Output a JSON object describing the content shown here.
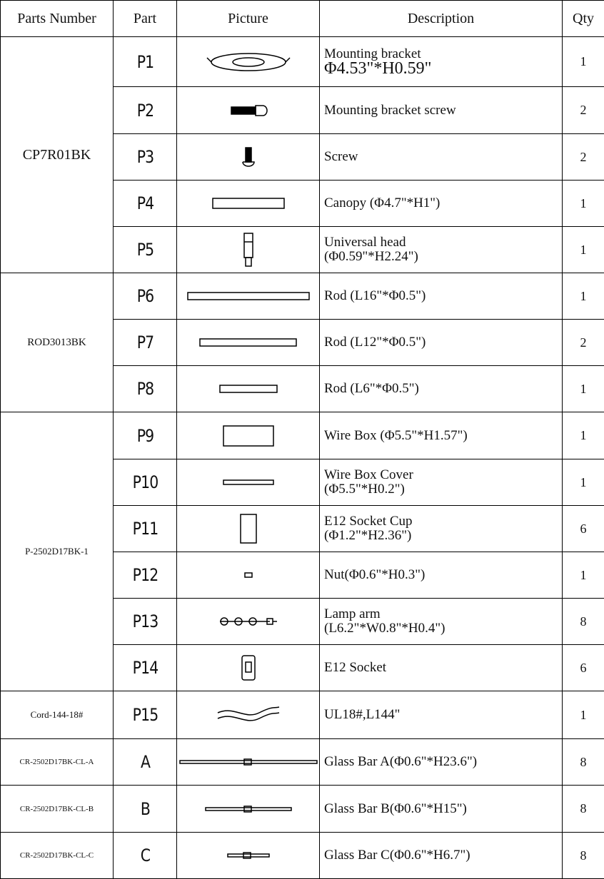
{
  "header": [
    "Parts Number",
    "Part",
    "Picture",
    "Description",
    "Qty"
  ],
  "groups": [
    {
      "parts_number": "CP7R01BK",
      "items": [
        {
          "part": "P1",
          "description": [
            "Mounting bracket",
            "Φ4.53\"*H0.59\""
          ],
          "qty": 1
        },
        {
          "part": "P2",
          "description": [
            "Mounting bracket screw"
          ],
          "qty": 2
        },
        {
          "part": "P3",
          "description": [
            "Screw"
          ],
          "qty": 2
        },
        {
          "part": "P4",
          "description": [
            "Canopy (Φ4.7\"*H1\")"
          ],
          "qty": 1
        },
        {
          "part": "P5",
          "description": [
            "Universal head",
            "(Φ0.59\"*H2.24\")"
          ],
          "qty": 1
        }
      ]
    },
    {
      "parts_number": "ROD3013BK",
      "items": [
        {
          "part": "P6",
          "description": [
            "Rod (L16\"*Φ0.5\")"
          ],
          "qty": 1
        },
        {
          "part": "P7",
          "description": [
            "Rod (L12\"*Φ0.5\")"
          ],
          "qty": 2
        },
        {
          "part": "P8",
          "description": [
            "Rod (L6\"*Φ0.5\")"
          ],
          "qty": 1
        }
      ]
    },
    {
      "parts_number": "P-2502D17BK-1",
      "items": [
        {
          "part": "P9",
          "description": [
            "Wire Box (Φ5.5\"*H1.57\")"
          ],
          "qty": 1
        },
        {
          "part": "P10",
          "description": [
            "Wire Box Cover",
            "(Φ5.5\"*H0.2\")"
          ],
          "qty": 1
        },
        {
          "part": "P11",
          "description": [
            "E12 Socket Cup",
            "(Φ1.2\"*H2.36\")"
          ],
          "qty": 6
        },
        {
          "part": "P12",
          "description": [
            "Nut(Φ0.6\"*H0.3\")"
          ],
          "qty": 1
        },
        {
          "part": "P13",
          "description": [
            "Lamp arm",
            "(L6.2\"*W0.8\"*H0.4\")"
          ],
          "qty": 8
        },
        {
          "part": "P14",
          "description": [
            "E12 Socket"
          ],
          "qty": 6
        }
      ]
    },
    {
      "parts_number": "Cord-144-18#",
      "items": [
        {
          "part": "P15",
          "description": [
            "UL18#,L144\""
          ],
          "qty": 1
        }
      ]
    },
    {
      "parts_number": "CR-2502D17BK-CL-A",
      "items": [
        {
          "part": "A",
          "description": [
            "Glass Bar A(Φ0.6\"*H23.6\")"
          ],
          "qty": 8
        }
      ]
    },
    {
      "parts_number": "CR-2502D17BK-CL-B",
      "items": [
        {
          "part": "B",
          "description": [
            "Glass Bar B(Φ0.6\"*H15\")"
          ],
          "qty": 8
        }
      ]
    },
    {
      "parts_number": "CR-2502D17BK-CL-C",
      "items": [
        {
          "part": "C",
          "description": [
            "Glass Bar C(Φ0.6\"*H6.7\")"
          ],
          "qty": 8
        }
      ]
    }
  ]
}
